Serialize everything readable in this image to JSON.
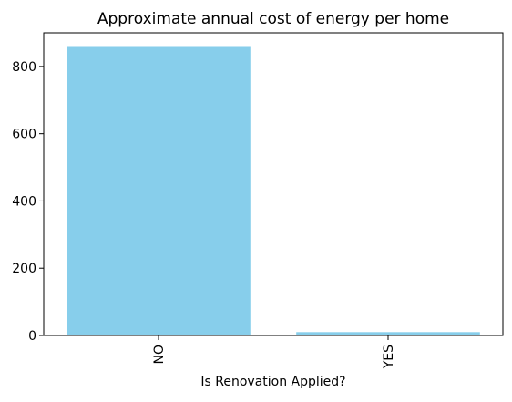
{
  "chart_data": {
    "type": "bar",
    "title": "Approximate annual cost of energy per home",
    "xlabel": "Is Renovation Applied?",
    "ylabel": "",
    "categories": [
      "NO",
      "YES"
    ],
    "values": [
      858,
      10
    ],
    "ylim": [
      0,
      900
    ],
    "yticks": [
      0,
      200,
      400,
      600,
      800
    ],
    "grid": false,
    "legend": "none",
    "bar_color": "#87CEEB",
    "axis_color": "#000000"
  }
}
